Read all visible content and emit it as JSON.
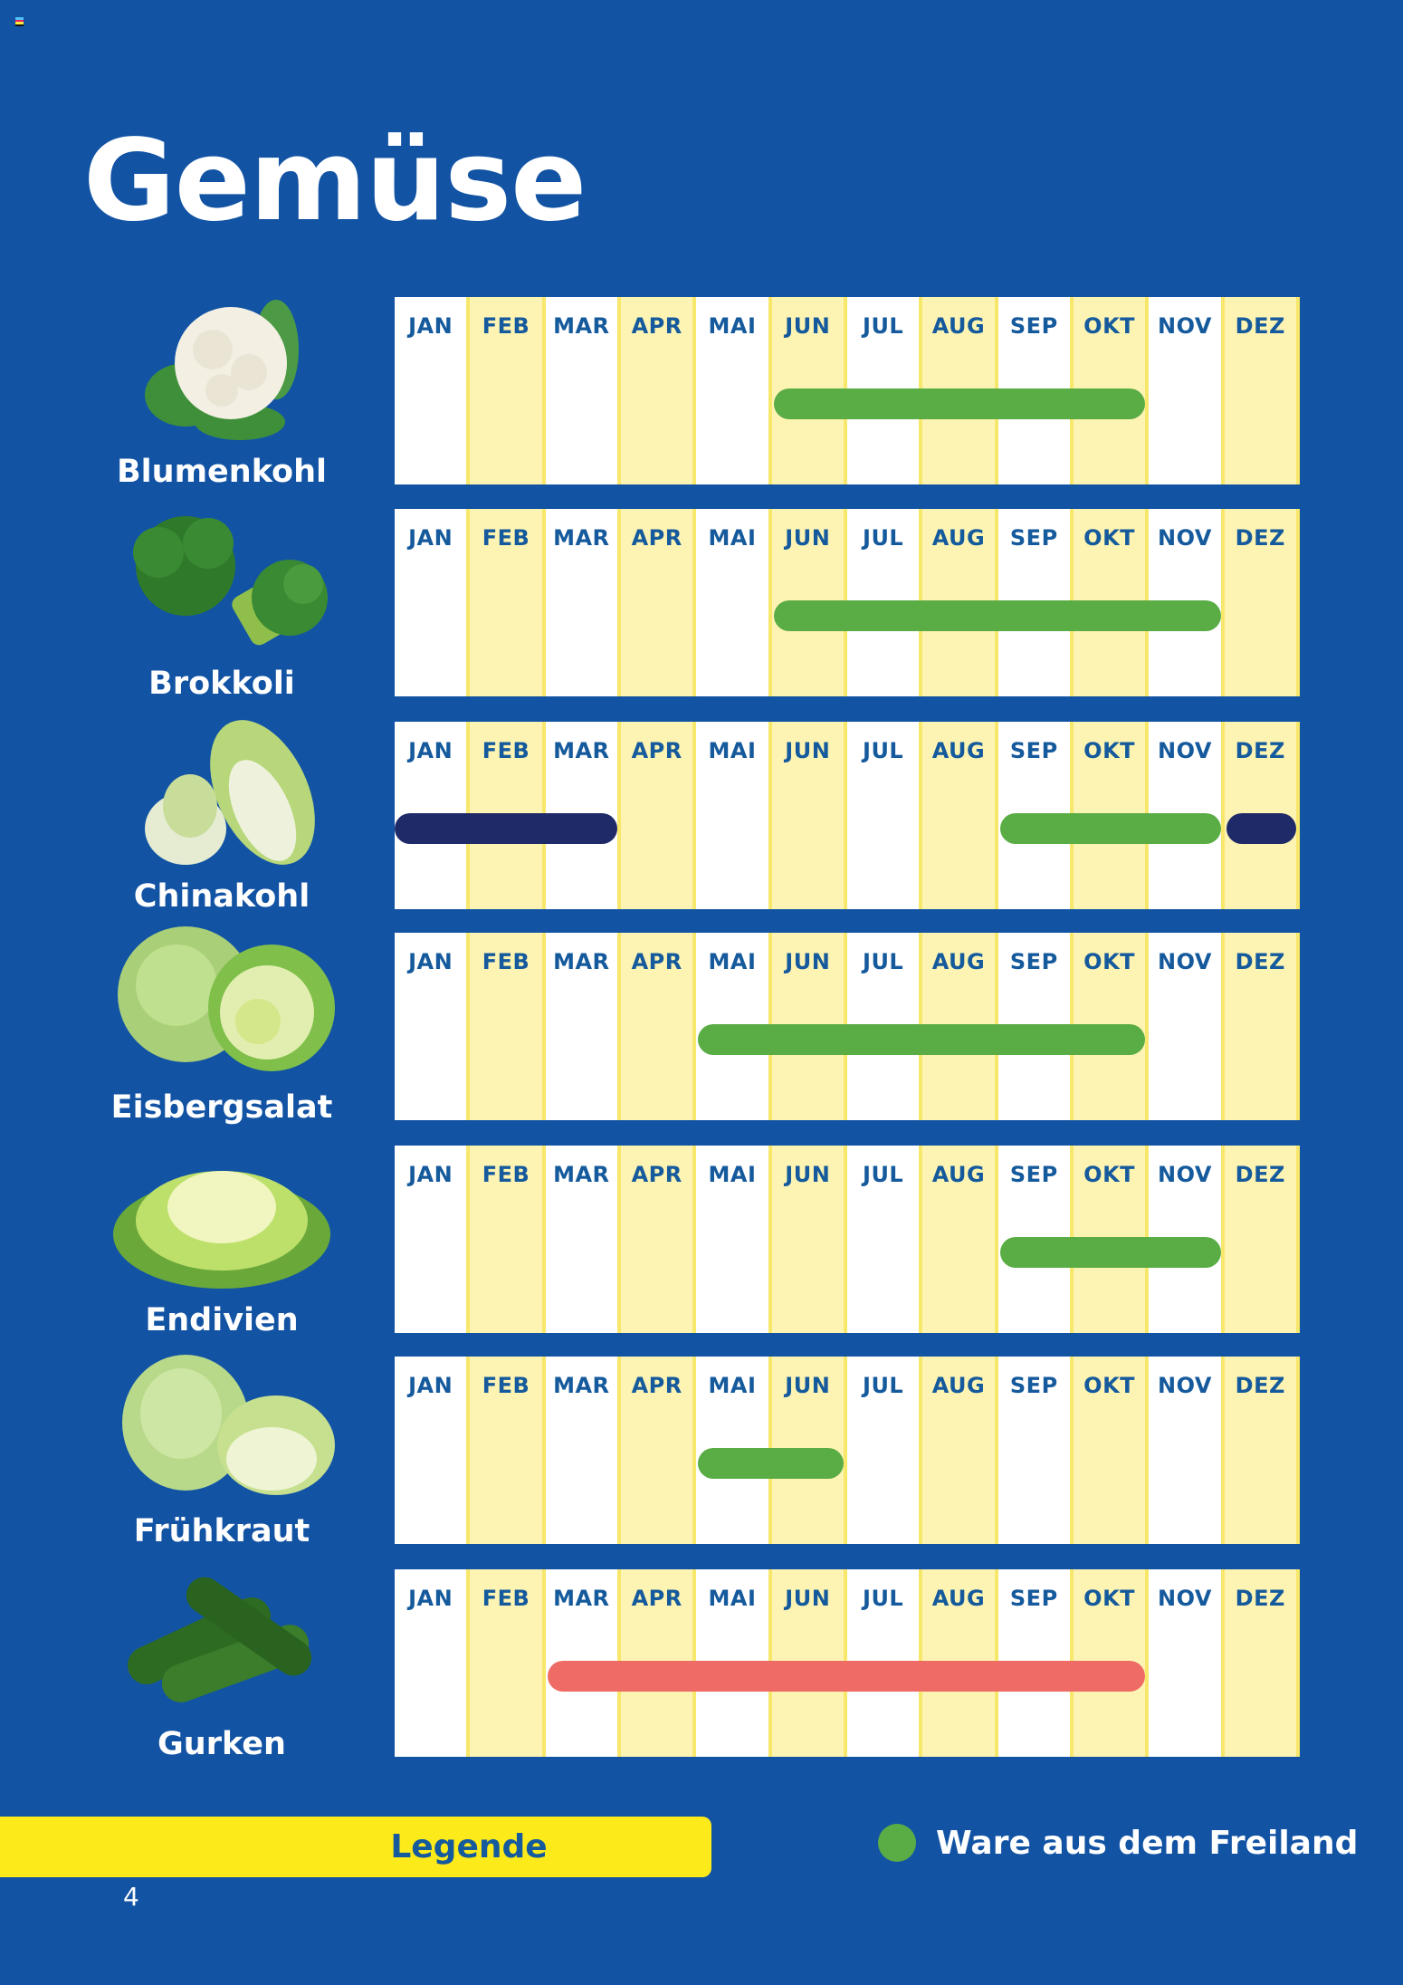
{
  "page": {
    "title": "Gemüse",
    "page_number": "4",
    "background": "#1253a4"
  },
  "colors": {
    "freiland": "#5aac45",
    "dark": "#1f2a68",
    "red": "#ef6b66",
    "month_text": "#155a9c",
    "alt_column": "#fdf4b4",
    "legend_bar": "#fcea1a"
  },
  "months": [
    "JAN",
    "FEB",
    "MAR",
    "APR",
    "MAI",
    "JUN",
    "JUL",
    "AUG",
    "SEP",
    "OKT",
    "NOV",
    "DEZ"
  ],
  "vegetables": [
    {
      "name": "Blumenkohl",
      "icon": "cauliflower-icon",
      "bars": [
        {
          "start": 6,
          "end": 10,
          "color": "green"
        }
      ]
    },
    {
      "name": "Brokkoli",
      "icon": "broccoli-icon",
      "bars": [
        {
          "start": 6,
          "end": 11,
          "color": "green"
        }
      ]
    },
    {
      "name": "Chinakohl",
      "icon": "chinese-cabbage-icon",
      "bars": [
        {
          "start": 1,
          "end": 3,
          "color": "dark"
        },
        {
          "start": 9,
          "end": 11,
          "color": "green"
        },
        {
          "start": 12,
          "end": 12,
          "color": "dark"
        }
      ]
    },
    {
      "name": "Eisbergsalat",
      "icon": "iceberg-lettuce-icon",
      "bars": [
        {
          "start": 5,
          "end": 10,
          "color": "green"
        }
      ]
    },
    {
      "name": "Endivien",
      "icon": "endive-icon",
      "bars": [
        {
          "start": 9,
          "end": 11,
          "color": "green"
        }
      ]
    },
    {
      "name": "Frühkraut",
      "icon": "spring-cabbage-icon",
      "bars": [
        {
          "start": 5,
          "end": 6,
          "color": "green"
        }
      ]
    },
    {
      "name": "Gurken",
      "icon": "cucumber-icon",
      "bars": [
        {
          "start": 3,
          "end": 10,
          "color": "red"
        }
      ]
    }
  ],
  "legend": {
    "title": "Legende",
    "items": [
      {
        "label": "Ware aus dem Freiland",
        "color": "#5aac45"
      }
    ]
  },
  "chart_data": {
    "type": "gantt",
    "title": "Gemüse",
    "categories": [
      "JAN",
      "FEB",
      "MAR",
      "APR",
      "MAI",
      "JUN",
      "JUL",
      "AUG",
      "SEP",
      "OKT",
      "NOV",
      "DEZ"
    ],
    "series": [
      {
        "name": "Blumenkohl",
        "ranges": [
          {
            "from": "JUN",
            "to": "OKT",
            "type": "Ware aus dem Freiland"
          }
        ]
      },
      {
        "name": "Brokkoli",
        "ranges": [
          {
            "from": "JUN",
            "to": "NOV",
            "type": "Ware aus dem Freiland"
          }
        ]
      },
      {
        "name": "Chinakohl",
        "ranges": [
          {
            "from": "JAN",
            "to": "MAR",
            "type": "dark-blue"
          },
          {
            "from": "SEP",
            "to": "NOV",
            "type": "Ware aus dem Freiland"
          },
          {
            "from": "DEZ",
            "to": "DEZ",
            "type": "dark-blue"
          }
        ]
      },
      {
        "name": "Eisbergsalat",
        "ranges": [
          {
            "from": "MAI",
            "to": "OKT",
            "type": "Ware aus dem Freiland"
          }
        ]
      },
      {
        "name": "Endivien",
        "ranges": [
          {
            "from": "SEP",
            "to": "NOV",
            "type": "Ware aus dem Freiland"
          }
        ]
      },
      {
        "name": "Frühkraut",
        "ranges": [
          {
            "from": "MAI",
            "to": "JUN",
            "type": "Ware aus dem Freiland"
          }
        ]
      },
      {
        "name": "Gurken",
        "ranges": [
          {
            "from": "MAR",
            "to": "OKT",
            "type": "red"
          }
        ]
      }
    ],
    "legend": [
      "Ware aus dem Freiland"
    ],
    "legend_position": "bottom"
  }
}
